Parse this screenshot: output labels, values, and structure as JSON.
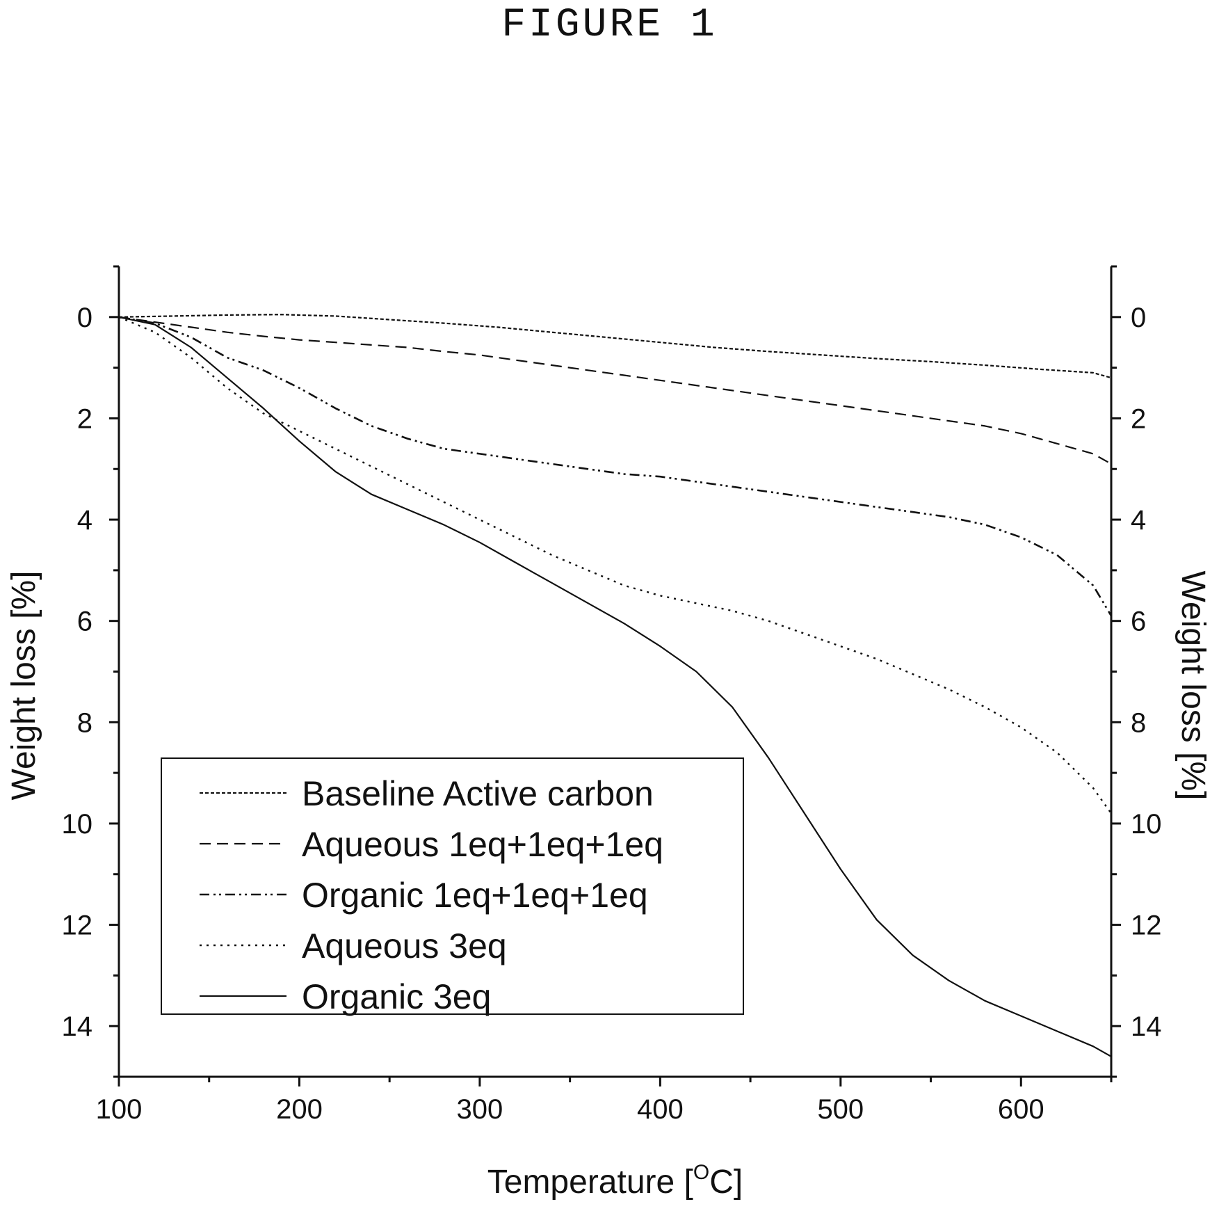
{
  "figure_title": "FIGURE 1",
  "chart_data": {
    "type": "line",
    "xlabel": "Temperature [°C]",
    "xlabel_parts": {
      "main": "Temperature [",
      "superscript": "O",
      "end": "C]"
    },
    "ylabel": "Weight loss [%]",
    "y2label": "Weight loss [%]",
    "xlim": [
      100,
      650
    ],
    "ylim": [
      -1,
      15
    ],
    "y_inverted": true,
    "x_ticks": [
      100,
      200,
      300,
      400,
      500,
      600
    ],
    "y_ticks": [
      0,
      2,
      4,
      6,
      8,
      10,
      12,
      14
    ],
    "grid": false,
    "legend_position": "bottom-left",
    "series": [
      {
        "name": "Baseline Active carbon",
        "style": "short-dot",
        "x": [
          100,
          130,
          160,
          190,
          220,
          250,
          280,
          310,
          340,
          370,
          400,
          430,
          460,
          490,
          520,
          550,
          580,
          610,
          640,
          650
        ],
        "y": [
          0,
          -0.02,
          -0.04,
          -0.05,
          -0.02,
          0.05,
          0.12,
          0.2,
          0.3,
          0.4,
          0.5,
          0.6,
          0.68,
          0.75,
          0.82,
          0.88,
          0.95,
          1.03,
          1.1,
          1.2
        ]
      },
      {
        "name": "Aqueous 1eq+1eq+1eq",
        "style": "dashed",
        "x": [
          100,
          120,
          140,
          160,
          180,
          200,
          220,
          240,
          260,
          280,
          300,
          320,
          340,
          360,
          380,
          400,
          420,
          440,
          460,
          480,
          500,
          520,
          540,
          560,
          580,
          600,
          620,
          640,
          650
        ],
        "y": [
          0,
          0.1,
          0.2,
          0.3,
          0.38,
          0.45,
          0.5,
          0.55,
          0.6,
          0.68,
          0.75,
          0.85,
          0.95,
          1.05,
          1.15,
          1.25,
          1.35,
          1.45,
          1.55,
          1.65,
          1.75,
          1.85,
          1.95,
          2.05,
          2.15,
          2.3,
          2.5,
          2.7,
          2.9
        ]
      },
      {
        "name": "Organic 1eq+1eq+1eq",
        "style": "dash-dot-dot",
        "x": [
          100,
          120,
          140,
          160,
          180,
          200,
          220,
          240,
          260,
          280,
          300,
          320,
          340,
          360,
          380,
          400,
          420,
          440,
          460,
          480,
          500,
          520,
          540,
          560,
          580,
          600,
          620,
          640,
          650
        ],
        "y": [
          0,
          0.12,
          0.4,
          0.8,
          1.05,
          1.4,
          1.8,
          2.15,
          2.4,
          2.6,
          2.7,
          2.8,
          2.9,
          3.0,
          3.1,
          3.15,
          3.25,
          3.35,
          3.45,
          3.55,
          3.65,
          3.75,
          3.85,
          3.95,
          4.1,
          4.35,
          4.7,
          5.3,
          5.9
        ]
      },
      {
        "name": "Aqueous 3eq",
        "style": "dotted",
        "x": [
          100,
          120,
          140,
          160,
          180,
          200,
          220,
          240,
          260,
          280,
          300,
          320,
          340,
          360,
          380,
          400,
          420,
          440,
          460,
          480,
          500,
          520,
          540,
          560,
          580,
          600,
          620,
          640,
          650
        ],
        "y": [
          0,
          0.3,
          0.8,
          1.4,
          1.9,
          2.25,
          2.6,
          2.95,
          3.3,
          3.65,
          4.0,
          4.35,
          4.7,
          5.0,
          5.3,
          5.5,
          5.65,
          5.8,
          6.0,
          6.25,
          6.5,
          6.75,
          7.05,
          7.35,
          7.7,
          8.1,
          8.6,
          9.3,
          9.8
        ]
      },
      {
        "name": "Organic 3eq",
        "style": "solid",
        "x": [
          100,
          120,
          140,
          160,
          180,
          200,
          220,
          240,
          260,
          280,
          300,
          320,
          340,
          360,
          380,
          400,
          420,
          440,
          460,
          480,
          500,
          520,
          540,
          560,
          580,
          600,
          620,
          640,
          650
        ],
        "y": [
          0,
          0.15,
          0.6,
          1.2,
          1.8,
          2.45,
          3.05,
          3.5,
          3.8,
          4.1,
          4.45,
          4.85,
          5.25,
          5.65,
          6.05,
          6.5,
          7.0,
          7.7,
          8.7,
          9.8,
          10.9,
          11.9,
          12.6,
          13.1,
          13.5,
          13.8,
          14.1,
          14.4,
          14.6
        ]
      }
    ]
  }
}
